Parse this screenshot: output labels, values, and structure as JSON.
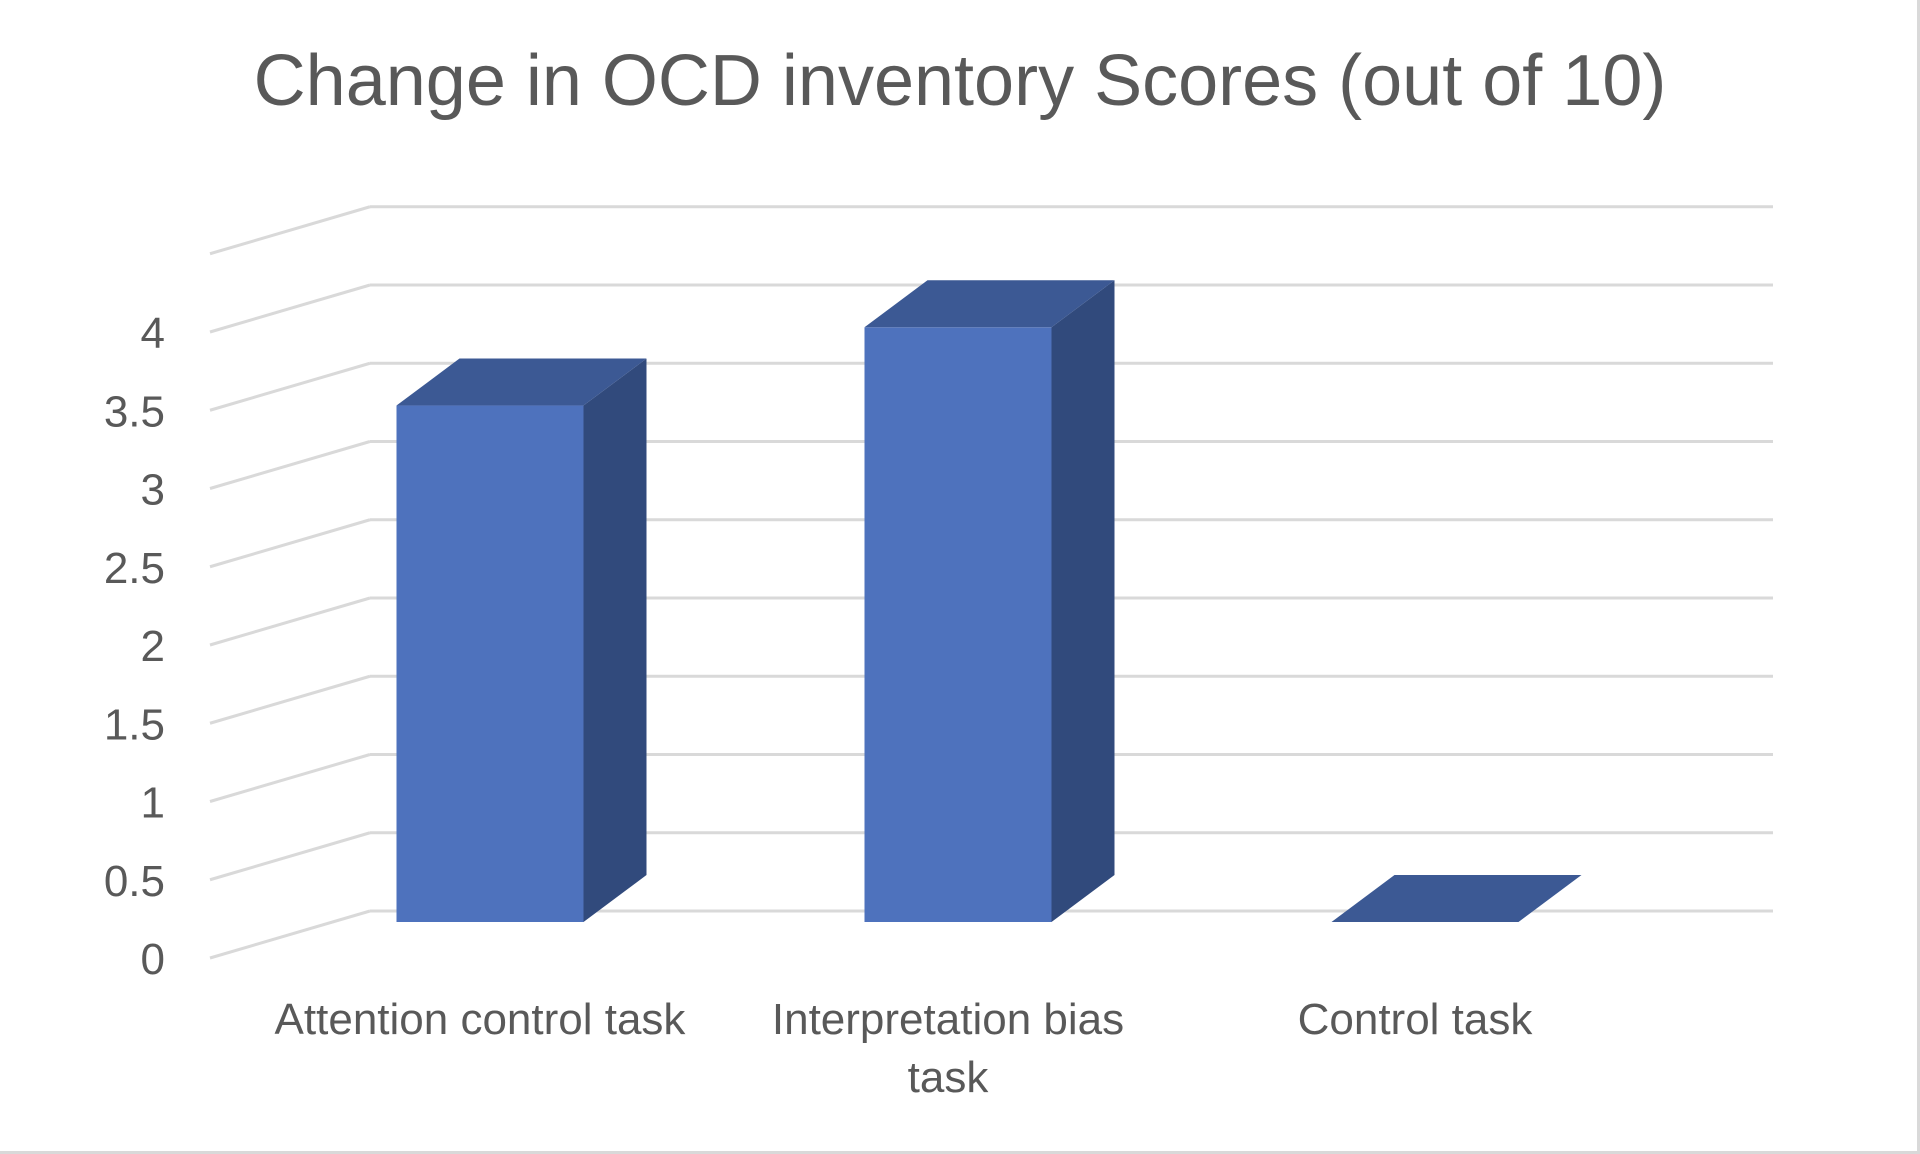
{
  "chart_data": {
    "type": "bar",
    "style": "3d-column",
    "title": "Change in OCD inventory Scores (out of 10)",
    "xlabel": "",
    "ylabel": "",
    "categories": [
      "Attention control task",
      "Interpretation bias task",
      "Control task"
    ],
    "category_lines": [
      [
        "Attention control task"
      ],
      [
        "Interpretation bias",
        "task"
      ],
      [
        "Control task"
      ]
    ],
    "values": [
      3.3,
      3.8,
      0
    ],
    "ylim": [
      0,
      4.5
    ],
    "yticks": [
      "0",
      "0.5",
      "1",
      "1.5",
      "2",
      "2.5",
      "3",
      "3.5",
      "4"
    ],
    "grid": true,
    "legend": "none",
    "colors": {
      "bar_front": "#4e72bd",
      "bar_side": "#314a7c",
      "bar_top": "#3c5994",
      "grid": "#d9d9d9",
      "text": "#595959"
    }
  }
}
